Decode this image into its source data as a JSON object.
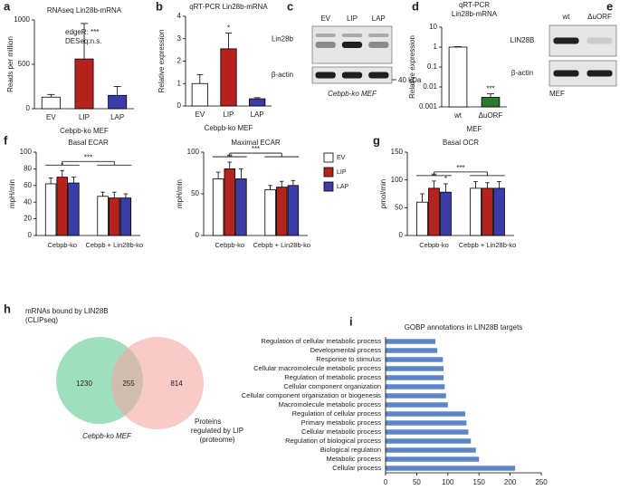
{
  "chart_data": [
    {
      "panel": "a",
      "type": "bar",
      "title": "RNAseq Lin28b-mRNA",
      "ylabel": "Reads per million",
      "xlabel": "Cebpb-ko MEF",
      "categories": [
        "EV",
        "LIP",
        "LAP"
      ],
      "values": [
        130,
        560,
        150
      ],
      "errors": [
        30,
        400,
        100
      ],
      "colors": [
        "#ffffff",
        "#b5231f",
        "#3c3ca8"
      ],
      "ylim": [
        0,
        1000
      ],
      "yticks": [
        0,
        500,
        1000
      ],
      "annotations": [
        "edgeR: ***",
        "DESeq:n.s."
      ]
    },
    {
      "panel": "b",
      "type": "bar",
      "title": "qRT-PCR Lin28b-mRNA",
      "ylabel": "Relative expression",
      "xlabel": "Cebpb-ko MEF",
      "categories": [
        "EV",
        "LIP",
        "LAP"
      ],
      "values": [
        1.0,
        2.55,
        0.32
      ],
      "errors": [
        0.4,
        0.7,
        0.05
      ],
      "colors": [
        "#ffffff",
        "#b5231f",
        "#3c3ca8"
      ],
      "ylim": [
        0,
        4
      ],
      "yticks": [
        0,
        1,
        2,
        3,
        4
      ],
      "significance": [
        null,
        "*",
        null
      ]
    },
    {
      "panel": "d",
      "type": "bar",
      "title": [
        "qRT-PCR",
        "Lin28b-mRNA"
      ],
      "ylabel": "Relative expression",
      "xlabel": "MEF",
      "categories": [
        "wt",
        "ΔuORF"
      ],
      "values": [
        1,
        0.003
      ],
      "errors": [
        0.05,
        0.0015
      ],
      "colors": [
        "#ffffff",
        "#2b7a2e"
      ],
      "log": true,
      "ylim": [
        0.001,
        10
      ],
      "yticks": [
        0.001,
        0.01,
        0.1,
        1,
        10
      ],
      "significance": [
        null,
        "***"
      ]
    },
    {
      "panel": "f",
      "type": "grouped_bar",
      "title": "Basal ECAR",
      "ylabel": "mpH/min",
      "categories": [
        "Cebpb-ko",
        "Cebpb + Lin28b-ko"
      ],
      "ylim": [
        0,
        100
      ],
      "yticks": [
        0,
        20,
        40,
        60,
        80,
        100
      ],
      "series": [
        {
          "color": "#ffffff",
          "values": [
            62,
            47
          ],
          "errors": [
            7,
            5
          ]
        },
        {
          "color": "#b5231f",
          "values": [
            70,
            45
          ],
          "errors": [
            8,
            7
          ],
          "significance": [
            "*",
            null
          ]
        },
        {
          "color": "#3c3ca8",
          "values": [
            63,
            45
          ],
          "errors": [
            7,
            5
          ]
        }
      ],
      "comparison": "***"
    },
    {
      "type": "grouped_bar",
      "title": "Maximal ECAR",
      "ylabel": "mpH/min",
      "categories": [
        "Cebpb-ko",
        "Cebpb + Lin28b-ko"
      ],
      "ylim": [
        0,
        100
      ],
      "yticks": [
        0,
        50,
        100
      ],
      "series": [
        {
          "name": "EV",
          "color": "#ffffff",
          "values": [
            68,
            55
          ],
          "errors": [
            8,
            5
          ]
        },
        {
          "name": "LIP",
          "color": "#b5231f",
          "values": [
            80,
            58
          ],
          "errors": [
            8,
            7
          ],
          "significance": [
            "**",
            null
          ]
        },
        {
          "name": "LAP",
          "color": "#3c3ca8",
          "values": [
            68,
            60
          ],
          "errors": [
            12,
            6
          ]
        }
      ],
      "comparison": "***",
      "legend": true
    },
    {
      "panel": "g",
      "type": "grouped_bar",
      "title": "Basal OCR",
      "ylabel": "pmol/min",
      "categories": [
        "Cebpb-ko",
        "Cebpb + Lin28b-ko"
      ],
      "ylim": [
        0,
        150
      ],
      "yticks": [
        0,
        50,
        100,
        150
      ],
      "series": [
        {
          "color": "#ffffff",
          "values": [
            60,
            85
          ],
          "errors": [
            15,
            12
          ]
        },
        {
          "color": "#b5231f",
          "values": [
            85,
            85
          ],
          "errors": [
            13,
            10
          ],
          "significance": [
            "**",
            null
          ]
        },
        {
          "color": "#3c3ca8",
          "values": [
            78,
            85
          ],
          "errors": [
            15,
            12
          ],
          "significance": [
            "*",
            null
          ]
        }
      ],
      "comparison": "***"
    },
    {
      "panel": "i",
      "type": "hbar",
      "title": "GOBP annotations in LIN28B targets",
      "color": "#5b87c7",
      "categories": [
        "Regulation of cellular metabolic process",
        "Developmental process",
        "Response to stimulus",
        "Cellular macromolecule metabolic process",
        "Regulation of metabolic process",
        "Cellular component organization",
        "Cellular component organization or biogenesis",
        "Macromolecule metabolic process",
        "Regulation of cellular process",
        "Primary metabolic process",
        "Cellular metabolic process",
        "Regulation of biological process",
        "Biological regulation",
        "Metabolic process",
        "Cellular process"
      ],
      "values": [
        80,
        83,
        92,
        93,
        93,
        95,
        97,
        100,
        128,
        130,
        133,
        137,
        145,
        150,
        208
      ],
      "xlim": [
        0,
        250
      ],
      "xticks": [
        0,
        50,
        100,
        150,
        200,
        250
      ]
    }
  ],
  "blots": [
    {
      "panel": "c",
      "lanes": [
        "EV",
        "LIP",
        "LAP"
      ],
      "rows": [
        "Lin28b",
        "β-actin"
      ],
      "marker": "40 kDa",
      "caption": "Cebpb-ko MEF"
    },
    {
      "panel": "e",
      "lanes": [
        "wt",
        "ΔuORF"
      ],
      "rows": [
        "LIN28B",
        "β-actin"
      ],
      "caption": "MEF"
    }
  ],
  "venn": {
    "panel": "h",
    "left_label": [
      "mRNAs bound by LIN28B",
      "(CLIPseq)"
    ],
    "right_label": [
      "Proteins",
      "regulated by LIP",
      "(proteome)"
    ],
    "left_only": 1230,
    "overlap": 255,
    "right_only": 814,
    "caption": "Cebpb-ko MEF"
  }
}
